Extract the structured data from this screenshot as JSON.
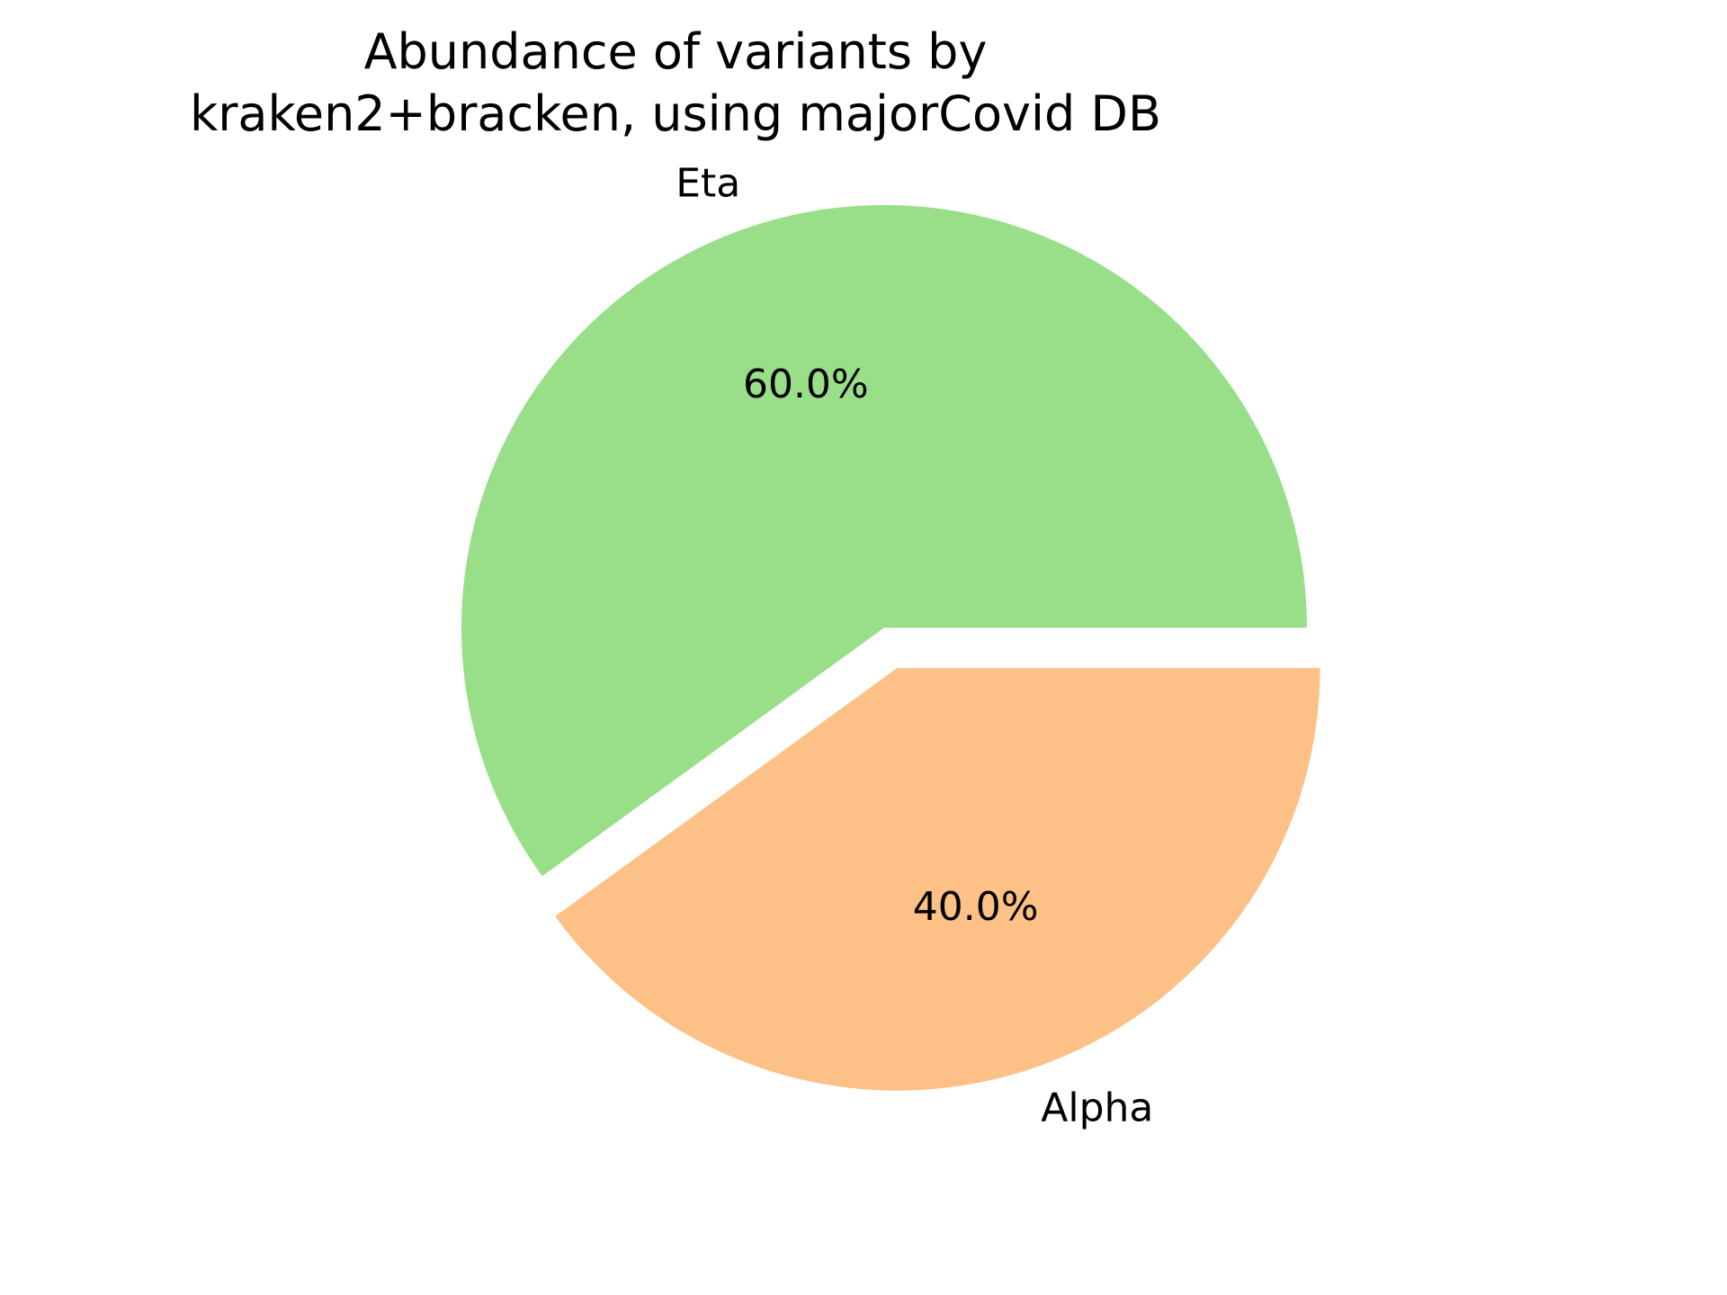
{
  "chart_data": {
    "type": "pie",
    "title_lines": [
      "Abundance of variants by",
      "kraken2+bracken, using majorCovid DB"
    ],
    "slices": [
      {
        "label": "Eta",
        "value": 60.0,
        "pct_label": "60.0%",
        "color": "#99df8a",
        "exploded": false
      },
      {
        "label": "Alpha",
        "value": 40.0,
        "pct_label": "40.0%",
        "color": "#fdc086",
        "exploded": true
      }
    ],
    "start_angle_deg": 0,
    "direction": "counterclockwise",
    "legend": "none"
  }
}
